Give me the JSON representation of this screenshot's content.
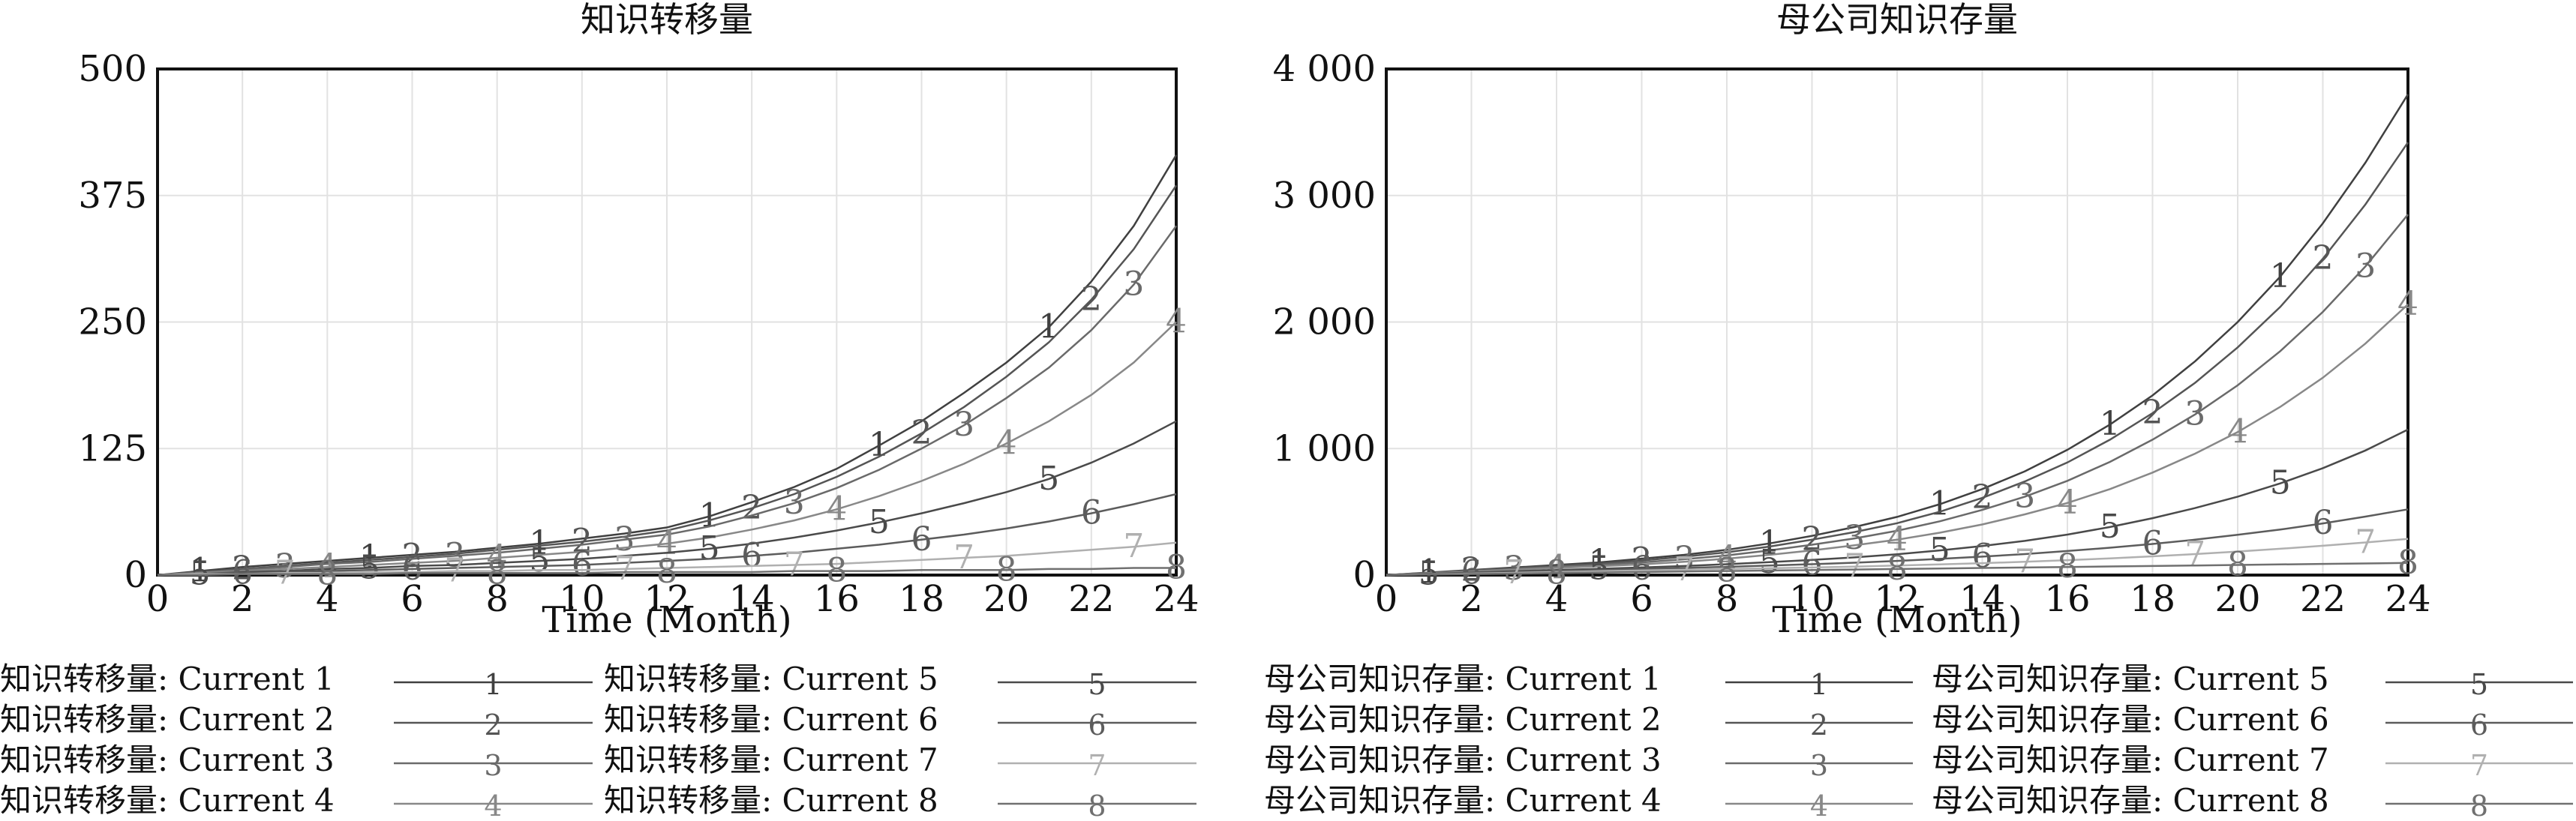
{
  "chart_data": [
    {
      "type": "line",
      "title": "知识转移量",
      "xlabel": "Time (Month)",
      "ylabel": "",
      "xlim": [
        0,
        24
      ],
      "ylim": [
        0,
        500
      ],
      "x_ticks": [
        "0",
        "2",
        "4",
        "6",
        "8",
        "10",
        "12",
        "14",
        "16",
        "18",
        "20",
        "22",
        "24"
      ],
      "y_ticks": [
        "0",
        "125",
        "250",
        "375",
        "500"
      ],
      "grid": true,
      "x": [
        0,
        1,
        2,
        3,
        4,
        5,
        6,
        7,
        8,
        9,
        10,
        11,
        12,
        13,
        14,
        15,
        16,
        17,
        18,
        19,
        20,
        21,
        22,
        23,
        24
      ],
      "series": [
        {
          "name": "知识转移量: Current 1",
          "marker": "1",
          "color": "#404040",
          "values": [
            0,
            4,
            8,
            11,
            14,
            17,
            20,
            23,
            27,
            31,
            36,
            41,
            47,
            58,
            72,
            87,
            105,
            128,
            152,
            180,
            210,
            245,
            290,
            345,
            415
          ]
        },
        {
          "name": "知识转移量: Current 2",
          "marker": "2",
          "color": "#555555",
          "values": [
            0,
            3,
            6,
            9,
            12,
            15,
            18,
            21,
            25,
            29,
            33,
            38,
            44,
            54,
            66,
            80,
            97,
            117,
            140,
            166,
            196,
            230,
            272,
            322,
            385
          ]
        },
        {
          "name": "知识转移量: Current 3",
          "marker": "3",
          "color": "#6a6a6a",
          "values": [
            0,
            3,
            5,
            8,
            11,
            13,
            16,
            19,
            22,
            26,
            30,
            35,
            40,
            48,
            59,
            71,
            86,
            104,
            125,
            148,
            175,
            205,
            242,
            287,
            345
          ]
        },
        {
          "name": "知识转移量: Current 4",
          "marker": "4",
          "color": "#888888",
          "values": [
            0,
            2,
            4,
            6,
            8,
            10,
            12,
            14,
            17,
            20,
            23,
            27,
            31,
            37,
            45,
            54,
            65,
            78,
            93,
            110,
            130,
            152,
            178,
            210,
            250
          ]
        },
        {
          "name": "知识转移量: Current 5",
          "marker": "5",
          "color": "#4a4a4a",
          "values": [
            0,
            1,
            3,
            4,
            6,
            7,
            9,
            10,
            12,
            14,
            16,
            19,
            22,
            26,
            31,
            37,
            44,
            52,
            61,
            71,
            82,
            95,
            111,
            130,
            152
          ]
        },
        {
          "name": "知识转移量: Current 6",
          "marker": "6",
          "color": "#5c5c5c",
          "values": [
            0,
            1,
            2,
            3,
            4,
            5,
            6,
            7,
            8,
            9,
            10,
            12,
            14,
            16,
            19,
            22,
            26,
            30,
            35,
            40,
            46,
            53,
            61,
            70,
            80
          ]
        },
        {
          "name": "知识转移量: Current 7",
          "marker": "7",
          "color": "#b0b0b0",
          "values": [
            0,
            1,
            1,
            2,
            2,
            3,
            3,
            4,
            4,
            5,
            5,
            6,
            7,
            8,
            9,
            10,
            11,
            13,
            15,
            17,
            19,
            22,
            25,
            28,
            32
          ]
        },
        {
          "name": "知识转移量: Current 8",
          "marker": "8",
          "color": "#707070",
          "values": [
            0,
            0,
            1,
            1,
            1,
            1,
            2,
            2,
            2,
            2,
            2,
            3,
            3,
            3,
            3,
            4,
            4,
            4,
            5,
            5,
            5,
            6,
            6,
            7,
            7
          ]
        }
      ],
      "legend_placement": "bottom"
    },
    {
      "type": "line",
      "title": "母公司知识存量",
      "xlabel": "Time (Month)",
      "ylabel": "",
      "xlim": [
        0,
        24
      ],
      "ylim": [
        0,
        4000
      ],
      "x_ticks": [
        "0",
        "2",
        "4",
        "6",
        "8",
        "10",
        "12",
        "14",
        "16",
        "18",
        "20",
        "22",
        "24"
      ],
      "y_ticks": [
        "0",
        "1 000",
        "2 000",
        "3 000",
        "4 000"
      ],
      "grid": true,
      "x": [
        0,
        1,
        2,
        3,
        4,
        5,
        6,
        7,
        8,
        9,
        10,
        11,
        12,
        13,
        14,
        15,
        16,
        17,
        18,
        19,
        20,
        21,
        22,
        23,
        24
      ],
      "series": [
        {
          "name": "母公司知识存量: Current 1",
          "marker": "1",
          "color": "#404040",
          "values": [
            0,
            20,
            40,
            60,
            80,
            100,
            130,
            160,
            200,
            250,
            310,
            380,
            460,
            560,
            680,
            820,
            990,
            1190,
            1420,
            1690,
            2000,
            2360,
            2780,
            3260,
            3800
          ]
        },
        {
          "name": "母公司知识存量: Current 2",
          "marker": "2",
          "color": "#555555",
          "values": [
            0,
            18,
            36,
            54,
            72,
            90,
            115,
            145,
            180,
            225,
            280,
            340,
            410,
            500,
            610,
            740,
            890,
            1070,
            1280,
            1520,
            1800,
            2120,
            2500,
            2930,
            3420
          ]
        },
        {
          "name": "母公司知识存量: Current 3",
          "marker": "3",
          "color": "#6a6a6a",
          "values": [
            0,
            16,
            32,
            48,
            64,
            80,
            100,
            125,
            155,
            195,
            240,
            290,
            350,
            425,
            515,
            620,
            745,
            895,
            1070,
            1270,
            1500,
            1770,
            2080,
            2440,
            2850
          ]
        },
        {
          "name": "母公司知识存量: Current 4",
          "marker": "4",
          "color": "#888888",
          "values": [
            0,
            14,
            28,
            42,
            56,
            70,
            85,
            105,
            130,
            160,
            195,
            235,
            280,
            335,
            400,
            480,
            570,
            680,
            810,
            960,
            1130,
            1330,
            1560,
            1830,
            2140
          ]
        },
        {
          "name": "母公司知识存量: Current 5",
          "marker": "5",
          "color": "#4a4a4a",
          "values": [
            0,
            10,
            20,
            30,
            40,
            50,
            60,
            72,
            86,
            102,
            120,
            140,
            165,
            195,
            230,
            270,
            320,
            380,
            450,
            530,
            620,
            725,
            845,
            985,
            1150
          ]
        },
        {
          "name": "母公司知识存量: Current 6",
          "marker": "6",
          "color": "#5c5c5c",
          "values": [
            0,
            8,
            16,
            24,
            32,
            40,
            48,
            56,
            65,
            75,
            86,
            98,
            112,
            128,
            146,
            166,
            190,
            216,
            246,
            280,
            318,
            360,
            408,
            462,
            520
          ]
        },
        {
          "name": "母公司知识存量: Current 7",
          "marker": "7",
          "color": "#b0b0b0",
          "values": [
            0,
            6,
            12,
            18,
            24,
            30,
            36,
            42,
            48,
            54,
            60,
            67,
            75,
            84,
            94,
            105,
            118,
            132,
            148,
            166,
            186,
            208,
            232,
            258,
            286
          ]
        },
        {
          "name": "母公司知识存量: Current 8",
          "marker": "8",
          "color": "#707070",
          "values": [
            0,
            4,
            8,
            12,
            16,
            20,
            24,
            28,
            32,
            36,
            40,
            44,
            48,
            52,
            56,
            60,
            64,
            68,
            72,
            76,
            80,
            84,
            88,
            92,
            96
          ]
        }
      ],
      "legend_placement": "bottom"
    }
  ]
}
